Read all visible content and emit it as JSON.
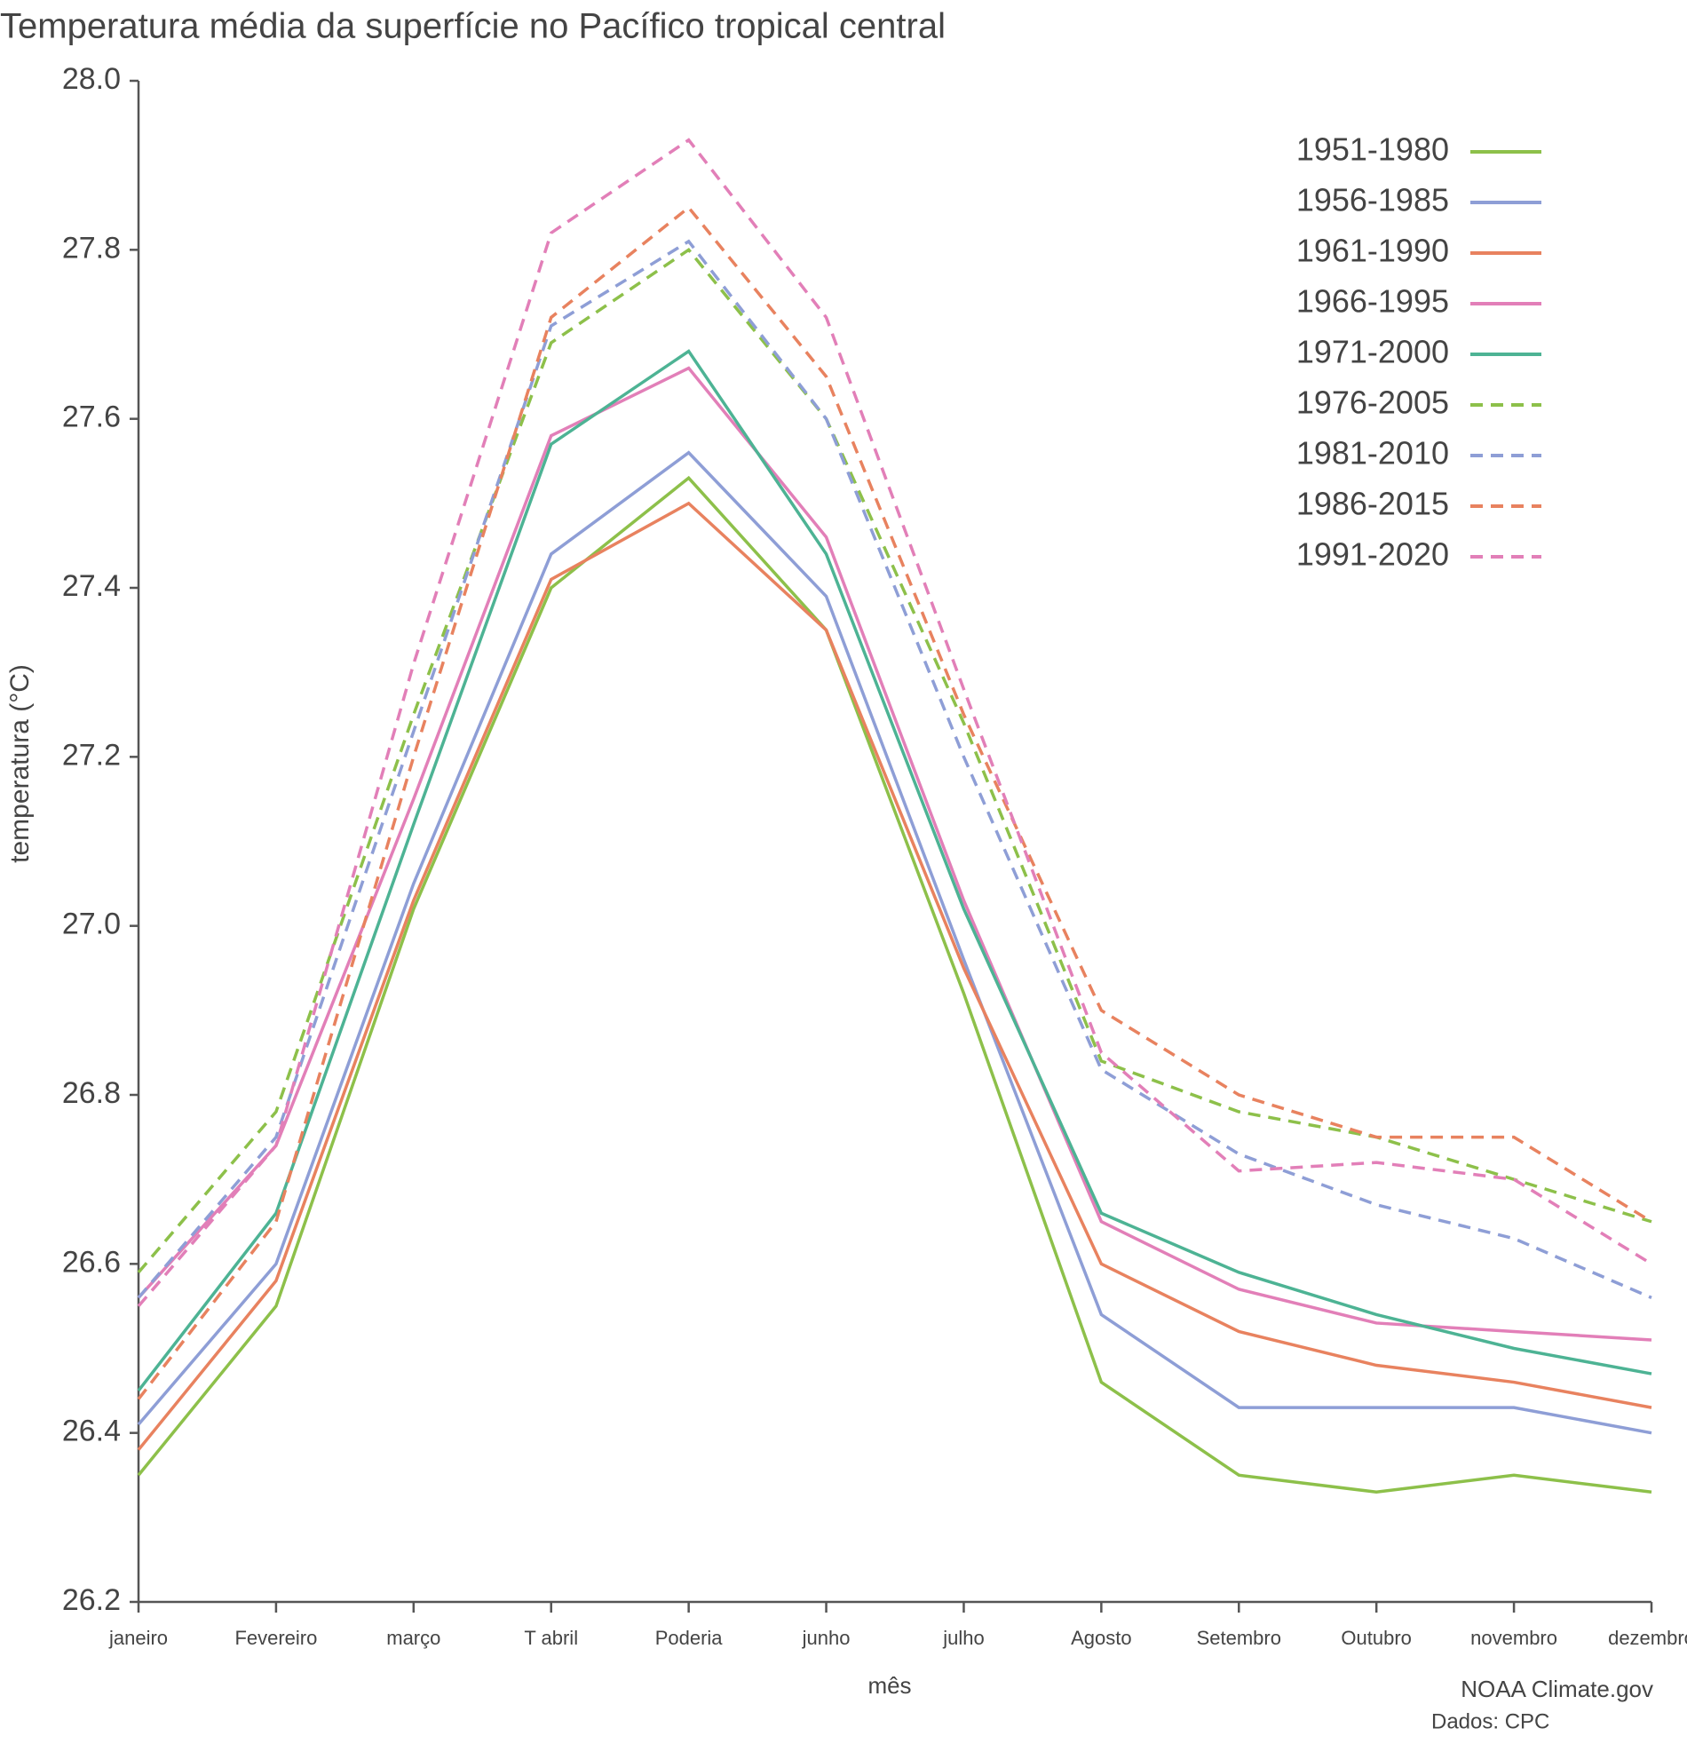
{
  "chart_data": {
    "type": "line",
    "title": "Temperatura média da superfície no Pacífico tropical central",
    "x_label": "mês",
    "y_label": "temperatura (°C)",
    "credits": [
      "NOAA Climate.gov",
      "Dados: CPC"
    ],
    "categories": [
      "janeiro",
      "Fevereiro",
      "março",
      "T abril",
      "Poderia",
      "junho",
      "julho",
      "Agosto",
      "Setembro",
      "Outubro",
      "novembro",
      "dezembro"
    ],
    "ylim": [
      26.2,
      28.0
    ],
    "yticks": [
      26.2,
      26.4,
      26.6,
      26.8,
      {
        "value": 27.0,
        "label": "27.0"
      },
      27.2,
      27.4,
      27.6,
      27.8,
      {
        "value": 28.0,
        "label": "28.0"
      }
    ],
    "grid": false,
    "legend": "top-right",
    "series": [
      {
        "name": "1951-1980",
        "color": "#8dc04a",
        "dashed": false,
        "values": [
          26.35,
          26.55,
          27.02,
          27.4,
          27.53,
          27.35,
          26.92,
          26.46,
          26.35,
          26.33,
          26.35,
          26.33
        ]
      },
      {
        "name": "1956-1985",
        "color": "#8e9ed6",
        "dashed": false,
        "values": [
          26.41,
          26.6,
          27.05,
          27.44,
          27.56,
          27.39,
          26.96,
          26.54,
          26.43,
          26.43,
          26.43,
          26.4
        ]
      },
      {
        "name": "1961-1990",
        "color": "#e8825f",
        "dashed": false,
        "values": [
          26.38,
          26.58,
          27.03,
          27.41,
          27.5,
          27.35,
          26.95,
          26.6,
          26.52,
          26.48,
          26.46,
          26.43
        ]
      },
      {
        "name": "1966-1995",
        "color": "#e27fb8",
        "dashed": false,
        "values": [
          26.56,
          26.74,
          27.15,
          27.58,
          27.66,
          27.46,
          27.03,
          26.65,
          26.57,
          26.53,
          26.52,
          26.51
        ]
      },
      {
        "name": "1971-2000",
        "color": "#4db394",
        "dashed": false,
        "values": [
          26.45,
          26.66,
          27.12,
          27.57,
          27.68,
          27.44,
          27.02,
          26.66,
          26.59,
          26.54,
          26.5,
          26.47
        ]
      },
      {
        "name": "1976-2005",
        "color": "#8dc04a",
        "dashed": true,
        "values": [
          26.59,
          26.78,
          27.25,
          27.69,
          27.8,
          27.6,
          27.24,
          26.84,
          26.78,
          26.75,
          26.7,
          26.65
        ]
      },
      {
        "name": "1981-2010",
        "color": "#8e9ed6",
        "dashed": true,
        "values": [
          26.56,
          26.75,
          27.23,
          27.71,
          27.81,
          27.6,
          27.2,
          26.83,
          26.73,
          26.67,
          26.63,
          26.56
        ]
      },
      {
        "name": "1986-2015",
        "color": "#e8825f",
        "dashed": true,
        "values": [
          26.44,
          26.65,
          27.2,
          27.72,
          27.85,
          27.65,
          27.25,
          26.9,
          26.8,
          26.75,
          26.75,
          26.65
        ]
      },
      {
        "name": "1991-2020",
        "color": "#e27fb8",
        "dashed": true,
        "values": [
          26.55,
          26.74,
          27.31,
          27.82,
          27.93,
          27.72,
          27.28,
          26.85,
          26.71,
          26.72,
          26.7,
          26.6
        ]
      }
    ]
  }
}
